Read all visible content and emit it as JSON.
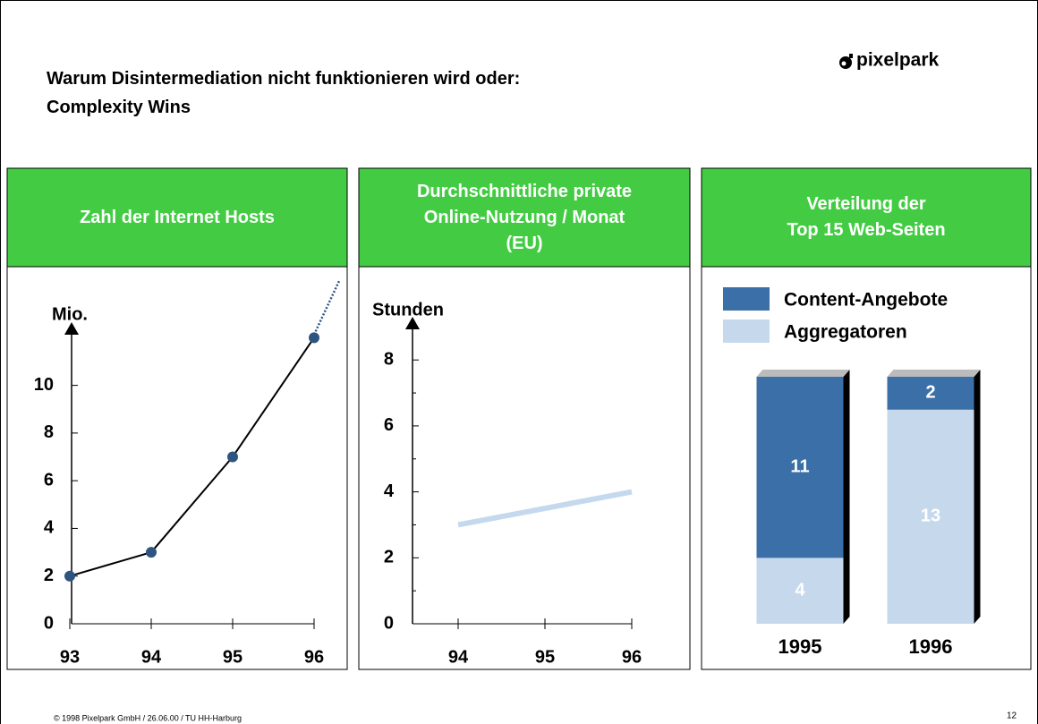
{
  "title": "Warum Disintermediation nicht funktionieren wird oder:\nComplexity Wins",
  "logo": "pixelpark",
  "footer": "© 1998 Pixelpark GmbH / 26.06.00 / TU HH-Harburg",
  "page_number": "12",
  "chart_data": [
    {
      "type": "line",
      "title": "Zahl der Internet Hosts",
      "ylabel": "Mio.",
      "categories": [
        "93",
        "94",
        "95",
        "96"
      ],
      "series": [
        {
          "values": [
            2,
            3,
            7,
            12
          ],
          "color": "#000000",
          "marker_color": "#2e5480"
        }
      ],
      "ylim": [
        0,
        12.5
      ],
      "yticks": [
        0,
        2,
        4,
        6,
        8,
        10
      ]
    },
    {
      "type": "line",
      "title": "Durchschnittliche private\nOnline-Nutzung / Monat\n(EU)",
      "ylabel": "Stunden",
      "categories": [
        "94",
        "95",
        "96"
      ],
      "series": [
        {
          "values": [
            3,
            3.5,
            4
          ],
          "color": "#c5d9ee"
        }
      ],
      "ylim": [
        0,
        9.2
      ],
      "yticks": [
        0,
        2,
        4,
        6,
        8
      ],
      "minor_yticks": [
        1,
        3,
        5,
        7
      ]
    },
    {
      "type": "bar",
      "stacked": true,
      "title": "Verteilung der\nTop 15 Web-Seiten",
      "categories": [
        "1995",
        "1996"
      ],
      "series": [
        {
          "name": "Aggregatoren",
          "color": "#c6d9ec",
          "values": [
            4,
            13
          ]
        },
        {
          "name": "Content-Angebote",
          "color": "#3b6fa8",
          "values": [
            11,
            2
          ]
        }
      ],
      "ylim": [
        0,
        15
      ]
    }
  ]
}
